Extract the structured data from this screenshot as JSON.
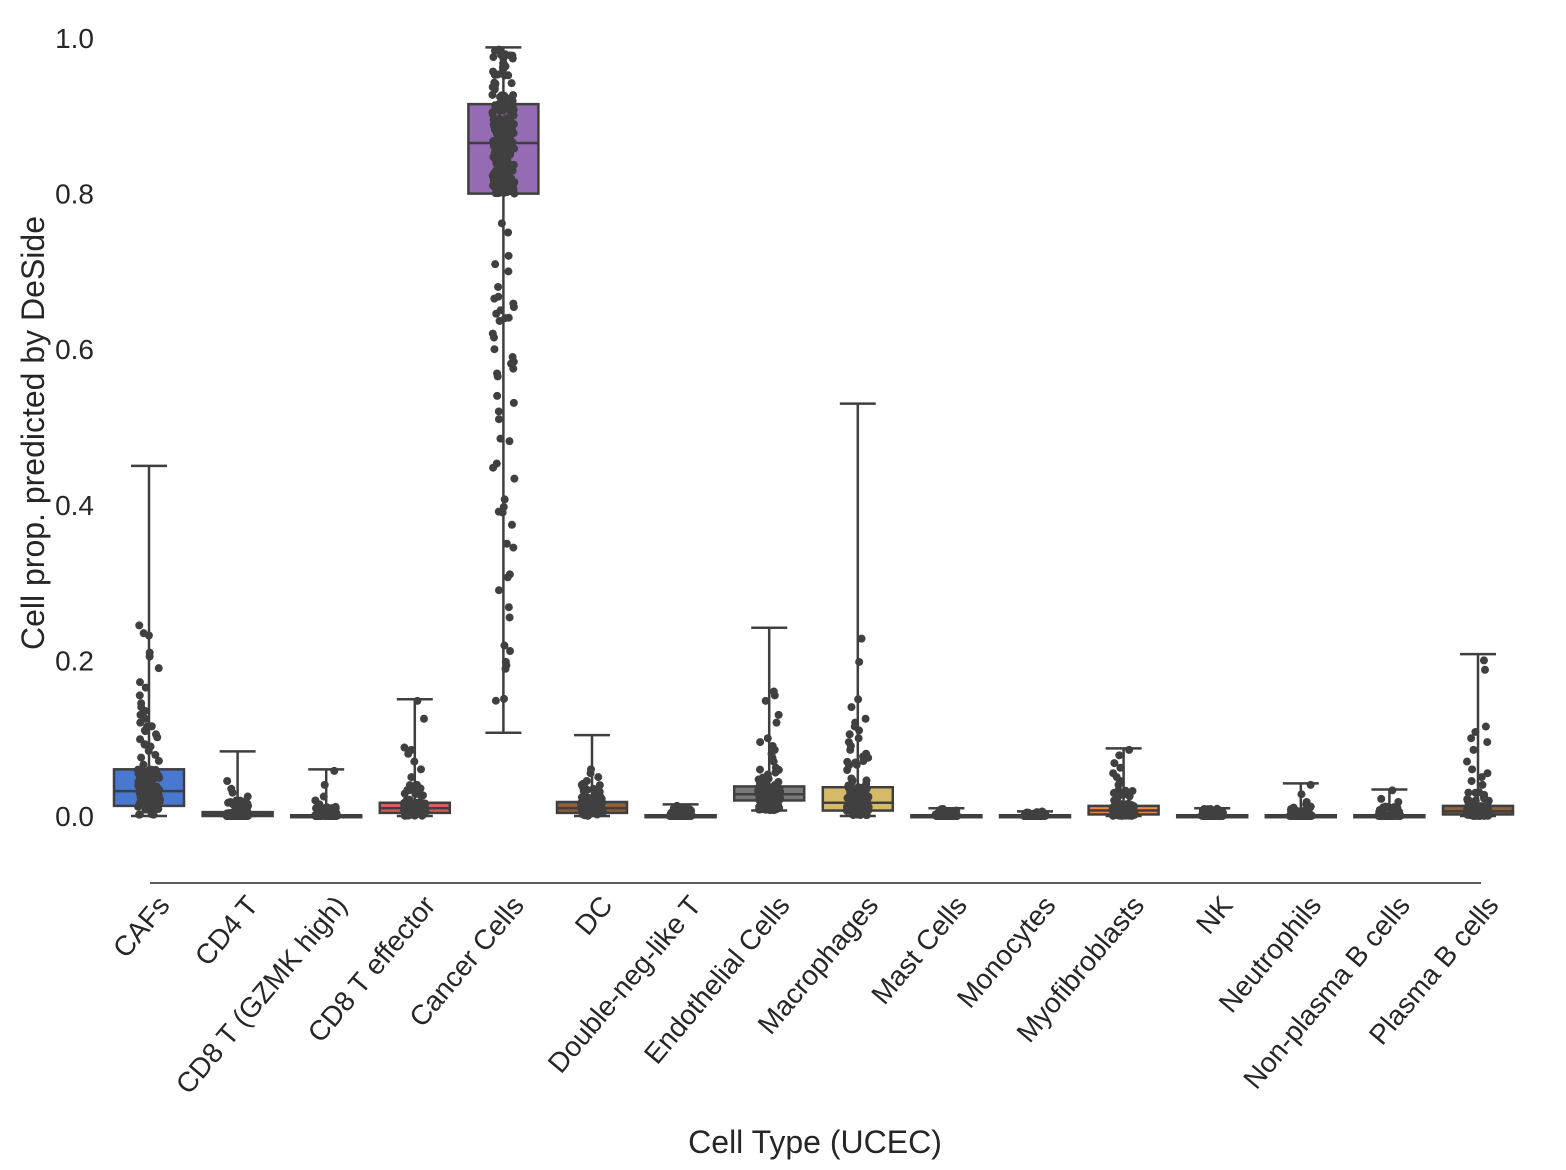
{
  "chart_data": {
    "type": "box",
    "xlabel": "Cell Type (UCEC)",
    "ylabel": "Cell prop. predicted by DeSide",
    "ylim": [
      -0.085,
      1.03
    ],
    "yticks": [
      0.0,
      0.2,
      0.4,
      0.6,
      0.8,
      1.0
    ],
    "ytick_labels": [
      "0.0",
      "0.2",
      "0.4",
      "0.6",
      "0.8",
      "1.0"
    ],
    "grid": false,
    "legend": "none",
    "points_color": "#404040",
    "categories": [
      "CAFs",
      "CD4 T",
      "CD8 T (GZMK high)",
      "CD8 T effector",
      "Cancer Cells",
      "DC",
      "Double-neg-like T",
      "Endothelial Cells",
      "Macrophages",
      "Mast Cells",
      "Monocytes",
      "Myofibroblasts",
      "NK",
      "Neutrophils",
      "Non-plasma B cells",
      "Plasma B cells"
    ],
    "boxes": [
      {
        "name": "CAFs",
        "color": "#4878d0",
        "min": 0.0,
        "q1": 0.013,
        "median": 0.032,
        "q3": 0.06,
        "max": 0.45,
        "outliers": [
          0.245,
          0.235,
          0.232,
          0.21,
          0.205,
          0.19,
          0.172,
          0.165,
          0.155,
          0.145,
          0.14,
          0.135,
          0.13,
          0.125,
          0.12,
          0.115,
          0.11,
          0.105
        ]
      },
      {
        "name": "CD4 T",
        "color": "#ee854a",
        "min": 0.0,
        "q1": 0.0,
        "median": 0.002,
        "q3": 0.005,
        "max": 0.083,
        "outliers": [
          0.045,
          0.035,
          0.03,
          0.025,
          0.02,
          0.018,
          0.015
        ]
      },
      {
        "name": "CD8 T (GZMK high)",
        "color": "#6acc64",
        "min": 0.0,
        "q1": 0.0,
        "median": 0.0,
        "q3": 0.001,
        "max": 0.06,
        "outliers": [
          0.058,
          0.04,
          0.025,
          0.02,
          0.015,
          0.01
        ]
      },
      {
        "name": "CD8 T effector",
        "color": "#d65f5f",
        "min": 0.0,
        "q1": 0.004,
        "median": 0.01,
        "q3": 0.017,
        "max": 0.15,
        "outliers": [
          0.148,
          0.125,
          0.088,
          0.085,
          0.08,
          0.07,
          0.06,
          0.05,
          0.04,
          0.035
        ]
      },
      {
        "name": "Cancer Cells",
        "color": "#956cb4",
        "min": 0.107,
        "q1": 0.8,
        "median": 0.865,
        "q3": 0.915,
        "max": 0.988,
        "outliers": [
          0.75,
          0.72,
          0.7,
          0.68,
          0.665,
          0.65,
          0.64,
          0.62,
          0.615,
          0.6,
          0.575,
          0.565,
          0.54,
          0.52,
          0.51,
          0.485,
          0.39,
          0.35,
          0.345
        ]
      },
      {
        "name": "DC",
        "color": "#8c613c",
        "min": 0.0,
        "q1": 0.004,
        "median": 0.01,
        "q3": 0.018,
        "max": 0.104,
        "outliers": [
          0.06,
          0.055,
          0.05,
          0.045,
          0.04,
          0.035,
          0.03
        ]
      },
      {
        "name": "Double-neg-like T",
        "color": "#dc7ec0",
        "min": 0.0,
        "q1": 0.0,
        "median": 0.0,
        "q3": 0.001,
        "max": 0.015,
        "outliers": [
          0.013,
          0.01,
          0.008,
          0.005
        ]
      },
      {
        "name": "Endothelial Cells",
        "color": "#797979",
        "min": 0.007,
        "q1": 0.02,
        "median": 0.028,
        "q3": 0.038,
        "max": 0.242,
        "outliers": [
          0.16,
          0.155,
          0.148,
          0.13,
          0.12,
          0.1,
          0.095,
          0.09,
          0.085,
          0.08,
          0.075,
          0.07
        ]
      },
      {
        "name": "Macrophages",
        "color": "#d5bb67",
        "min": 0.0,
        "q1": 0.007,
        "median": 0.017,
        "q3": 0.037,
        "max": 0.53,
        "outliers": [
          0.228,
          0.198,
          0.15,
          0.14,
          0.125,
          0.12,
          0.115,
          0.11,
          0.105,
          0.1,
          0.095,
          0.09,
          0.085,
          0.08,
          0.075
        ]
      },
      {
        "name": "Mast Cells",
        "color": "#82c6e2",
        "min": 0.0,
        "q1": 0.0,
        "median": 0.0,
        "q3": 0.001,
        "max": 0.01,
        "outliers": [
          0.009,
          0.007,
          0.005
        ]
      },
      {
        "name": "Monocytes",
        "color": "#4878d0",
        "min": 0.0,
        "q1": 0.0,
        "median": 0.0,
        "q3": 0.001,
        "max": 0.006,
        "outliers": [
          0.005,
          0.004
        ]
      },
      {
        "name": "Myofibroblasts",
        "color": "#ee854a",
        "min": 0.0,
        "q1": 0.002,
        "median": 0.007,
        "q3": 0.013,
        "max": 0.087,
        "outliers": [
          0.085,
          0.078,
          0.068,
          0.062,
          0.055,
          0.05,
          0.045,
          0.04
        ]
      },
      {
        "name": "NK",
        "color": "#6acc64",
        "min": 0.0,
        "q1": 0.0,
        "median": 0.0,
        "q3": 0.001,
        "max": 0.01,
        "outliers": [
          0.009,
          0.007,
          0.005
        ]
      },
      {
        "name": "Neutrophils",
        "color": "#d65f5f",
        "min": 0.0,
        "q1": 0.0,
        "median": 0.0,
        "q3": 0.001,
        "max": 0.042,
        "outliers": [
          0.04,
          0.028,
          0.018,
          0.015,
          0.012
        ]
      },
      {
        "name": "Non-plasma B cells",
        "color": "#956cb4",
        "min": 0.0,
        "q1": 0.0,
        "median": 0.0,
        "q3": 0.001,
        "max": 0.034,
        "outliers": [
          0.033,
          0.022,
          0.018,
          0.012,
          0.008
        ]
      },
      {
        "name": "Plasma B cells",
        "color": "#8c613c",
        "min": 0.0,
        "q1": 0.002,
        "median": 0.006,
        "q3": 0.013,
        "max": 0.208,
        "outliers": [
          0.2,
          0.188,
          0.115,
          0.108,
          0.1,
          0.095,
          0.085,
          0.07,
          0.06,
          0.055,
          0.05,
          0.045,
          0.04
        ]
      }
    ]
  }
}
